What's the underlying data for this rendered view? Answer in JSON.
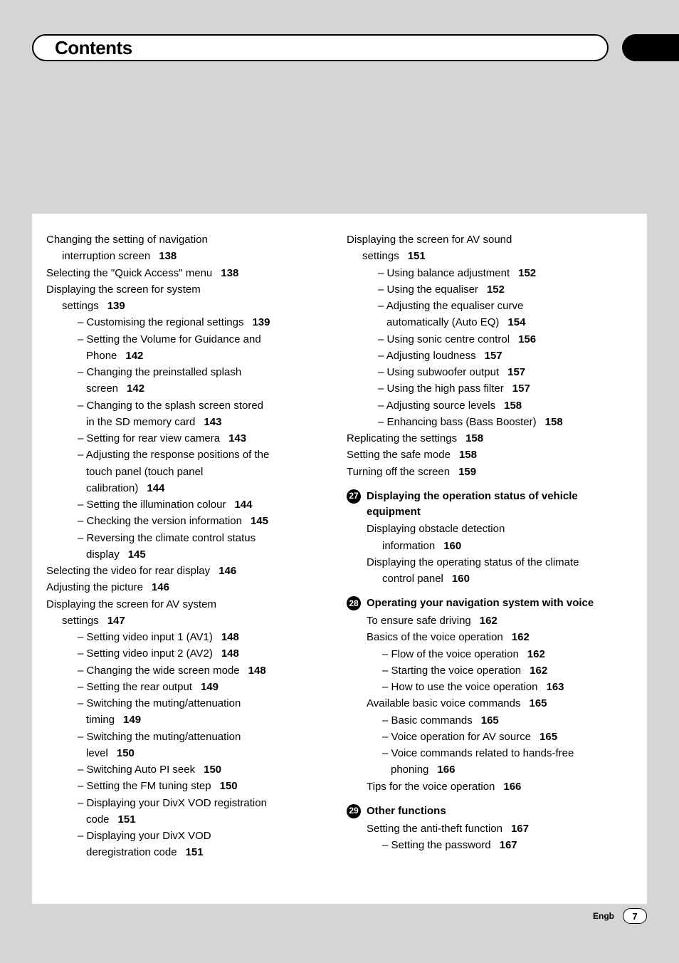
{
  "header": {
    "title": "Contents"
  },
  "footer": {
    "lang": "Engb",
    "page": "7"
  },
  "left_col": [
    {
      "type": "line",
      "text": "Changing the setting of navigation"
    },
    {
      "type": "cont",
      "text": "interruption screen",
      "page": "138"
    },
    {
      "type": "line",
      "text": "Selecting the \"Quick Access\" menu",
      "page": "138"
    },
    {
      "type": "line",
      "text": "Displaying the screen for system"
    },
    {
      "type": "cont",
      "text": "settings",
      "page": "139"
    },
    {
      "type": "dash",
      "text": "Customising the regional settings",
      "page": "139"
    },
    {
      "type": "dash",
      "text": "Setting the Volume for Guidance and"
    },
    {
      "type": "dashcont",
      "text": "Phone",
      "page": "142"
    },
    {
      "type": "dash",
      "text": "Changing the preinstalled splash"
    },
    {
      "type": "dashcont",
      "text": "screen",
      "page": "142"
    },
    {
      "type": "dash",
      "text": "Changing to the splash screen stored"
    },
    {
      "type": "dashcont",
      "text": "in the SD memory card",
      "page": "143"
    },
    {
      "type": "dash",
      "text": "Setting for rear view camera",
      "page": "143"
    },
    {
      "type": "dash",
      "text": "Adjusting the response positions of the"
    },
    {
      "type": "dashcont",
      "text": "touch panel (touch panel"
    },
    {
      "type": "dashcont",
      "text": "calibration)",
      "page": "144"
    },
    {
      "type": "dash",
      "text": "Setting the illumination colour",
      "page": "144"
    },
    {
      "type": "dash",
      "text": "Checking the version information",
      "page": "145"
    },
    {
      "type": "dash",
      "text": "Reversing the climate control status"
    },
    {
      "type": "dashcont",
      "text": "display",
      "page": "145"
    },
    {
      "type": "line",
      "text": "Selecting the video for rear display",
      "page": "146"
    },
    {
      "type": "line",
      "text": "Adjusting the picture",
      "page": "146"
    },
    {
      "type": "line",
      "text": "Displaying the screen for AV system"
    },
    {
      "type": "cont",
      "text": "settings",
      "page": "147"
    },
    {
      "type": "dash",
      "text": "Setting video input 1 (AV1)",
      "page": "148"
    },
    {
      "type": "dash",
      "text": "Setting video input 2 (AV2)",
      "page": "148"
    },
    {
      "type": "dash",
      "text": "Changing the wide screen mode",
      "page": "148"
    },
    {
      "type": "dash",
      "text": "Setting the rear output",
      "page": "149"
    },
    {
      "type": "dash",
      "text": "Switching the muting/attenuation"
    },
    {
      "type": "dashcont",
      "text": "timing",
      "page": "149"
    },
    {
      "type": "dash",
      "text": "Switching the muting/attenuation"
    },
    {
      "type": "dashcont",
      "text": "level",
      "page": "150"
    },
    {
      "type": "dash",
      "text": "Switching Auto PI seek",
      "page": "150"
    },
    {
      "type": "dash",
      "text": "Setting the FM tuning step",
      "page": "150"
    },
    {
      "type": "dash",
      "text": "Displaying your DivX VOD registration"
    },
    {
      "type": "dashcont",
      "text": "code",
      "page": "151"
    },
    {
      "type": "dash",
      "text": "Displaying your DivX VOD"
    },
    {
      "type": "dashcont",
      "text": "deregistration code",
      "page": "151"
    }
  ],
  "right_col": [
    {
      "type": "line",
      "text": "Displaying the screen for AV sound"
    },
    {
      "type": "cont",
      "text": "settings",
      "page": "151"
    },
    {
      "type": "dash",
      "text": "Using balance adjustment",
      "page": "152"
    },
    {
      "type": "dash",
      "text": "Using the equaliser",
      "page": "152"
    },
    {
      "type": "dash",
      "text": "Adjusting the equaliser curve"
    },
    {
      "type": "dashcont",
      "text": "automatically (Auto EQ)",
      "page": "154"
    },
    {
      "type": "dash",
      "text": "Using sonic centre control",
      "page": "156"
    },
    {
      "type": "dash",
      "text": "Adjusting loudness",
      "page": "157"
    },
    {
      "type": "dash",
      "text": "Using subwoofer output",
      "page": "157"
    },
    {
      "type": "dash",
      "text": "Using the high pass filter",
      "page": "157"
    },
    {
      "type": "dash",
      "text": "Adjusting source levels",
      "page": "158"
    },
    {
      "type": "dash",
      "text": "Enhancing bass (Bass Booster)",
      "page": "158"
    },
    {
      "type": "line",
      "text": "Replicating the settings",
      "page": "158"
    },
    {
      "type": "line",
      "text": "Setting the safe mode",
      "page": "158"
    },
    {
      "type": "line",
      "text": "Turning off the screen",
      "page": "159"
    },
    {
      "type": "section",
      "num": "27",
      "title": "Displaying the operation status of vehicle equipment"
    },
    {
      "type": "sline",
      "text": "Displaying obstacle detection"
    },
    {
      "type": "scont",
      "text": "information",
      "page": "160"
    },
    {
      "type": "sline",
      "text": "Displaying the operating status of the climate"
    },
    {
      "type": "scont",
      "text": "control panel",
      "page": "160"
    },
    {
      "type": "section",
      "num": "28",
      "title": "Operating your navigation system with voice"
    },
    {
      "type": "sline",
      "text": "To ensure safe driving",
      "page": "162"
    },
    {
      "type": "sline",
      "text": "Basics of the voice operation",
      "page": "162"
    },
    {
      "type": "sdash",
      "text": "Flow of the voice operation",
      "page": "162"
    },
    {
      "type": "sdash",
      "text": "Starting the voice operation",
      "page": "162"
    },
    {
      "type": "sdash",
      "text": "How to use the voice operation",
      "page": "163"
    },
    {
      "type": "sline",
      "text": "Available basic voice commands",
      "page": "165"
    },
    {
      "type": "sdash",
      "text": "Basic commands",
      "page": "165"
    },
    {
      "type": "sdash",
      "text": "Voice operation for AV source",
      "page": "165"
    },
    {
      "type": "sdash",
      "text": "Voice commands related to hands-free"
    },
    {
      "type": "sdashcont",
      "text": "phoning",
      "page": "166"
    },
    {
      "type": "sline",
      "text": "Tips for the voice operation",
      "page": "166"
    },
    {
      "type": "section",
      "num": "29",
      "title": "Other functions"
    },
    {
      "type": "sline",
      "text": "Setting the anti-theft function",
      "page": "167"
    },
    {
      "type": "sdash",
      "text": "Setting the password",
      "page": "167"
    }
  ]
}
